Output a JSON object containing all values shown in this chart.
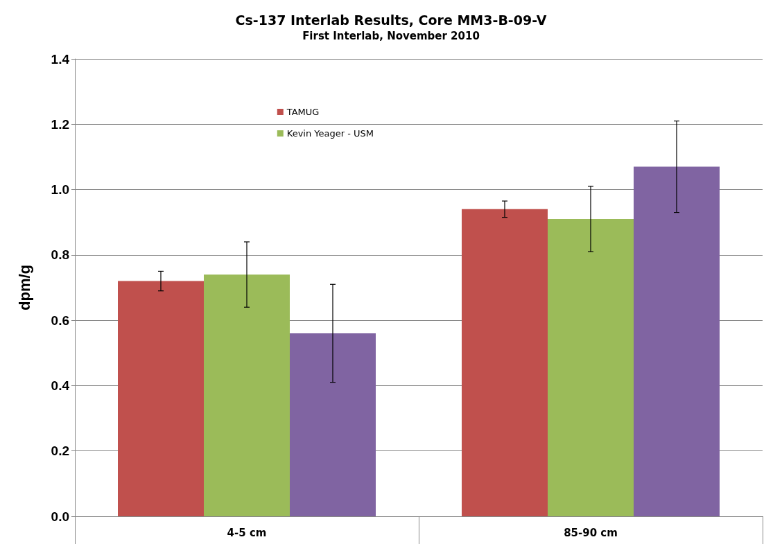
{
  "chart_data": {
    "type": "bar",
    "title": "Cs-137 Interlab Results, Core MM3-B-09-V",
    "subtitle": "First Interlab, November 2010",
    "ylabel": "dpm/g",
    "categories": [
      "4-5 cm",
      "85-90 cm"
    ],
    "series": [
      {
        "name": "TAMUG",
        "color": "#c0504d",
        "values": [
          0.72,
          0.94
        ],
        "errors": [
          0.03,
          0.025
        ]
      },
      {
        "name": "Kevin Yeager - USM",
        "color": "#9bbb59",
        "values": [
          0.74,
          0.91
        ],
        "errors": [
          0.1,
          0.1
        ]
      },
      {
        "color": "#8064a2",
        "values": [
          0.56,
          1.07
        ],
        "errors": [
          0.15,
          0.14
        ]
      }
    ],
    "ylim": [
      0,
      1.4
    ],
    "yticks": [
      {
        "value": 0,
        "label": "0.0"
      },
      {
        "value": 0.2,
        "label": "0.2"
      },
      {
        "value": 0.4,
        "label": "0.4"
      },
      {
        "value": 0.6,
        "label": "0.6"
      },
      {
        "value": 0.8,
        "label": "0.8"
      },
      {
        "value": 1,
        "label": "1.0"
      },
      {
        "value": 1.2,
        "label": "1.2"
      },
      {
        "value": 1.4,
        "label": "1.4"
      }
    ],
    "grid": "y",
    "legend": "top"
  }
}
